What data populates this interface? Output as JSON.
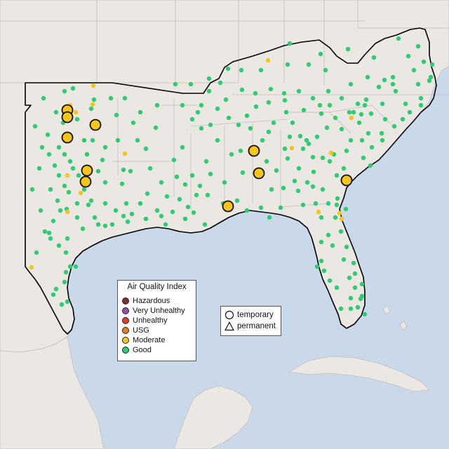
{
  "legend": {
    "title": "Air Quality Index",
    "categories": [
      {
        "label": "Hazardous",
        "color": "#7e2e2e"
      },
      {
        "label": "Very Unhealthy",
        "color": "#8f4fb3"
      },
      {
        "label": "Unhealthy",
        "color": "#e03c2b"
      },
      {
        "label": "USG",
        "color": "#e67e22"
      },
      {
        "label": "Moderate",
        "color": "#f5c518"
      },
      {
        "label": "Good",
        "color": "#2ecc71"
      }
    ]
  },
  "monitor_types": {
    "temporary": "temporary",
    "permanent": "permanent"
  },
  "map_colors": {
    "water": "#c9d9ea",
    "land": "#ebe7e3",
    "border": "#c2bebd",
    "region_outline": "#000000"
  },
  "moderate_temporary_monitors": 10,
  "sensor_category_counts": {
    "moderate": 27,
    "good": 297
  }
}
